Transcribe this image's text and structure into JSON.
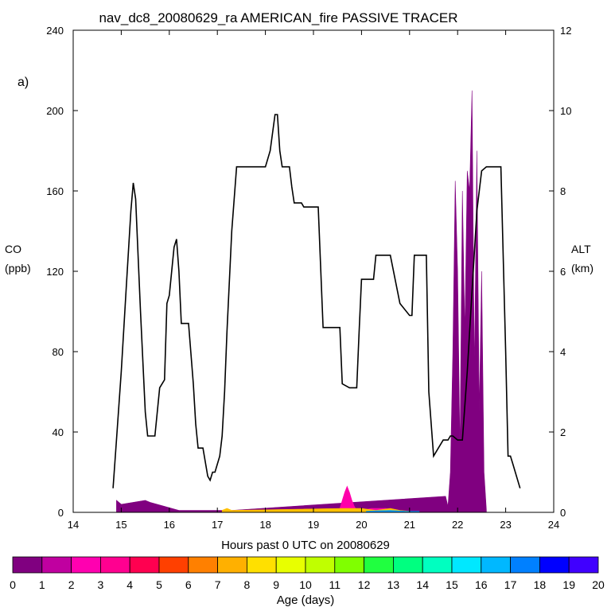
{
  "chart_data": {
    "type": "area",
    "title": "nav_dc8_20080629_ra AMERICAN_fire PASSIVE TRACER",
    "panel_label": "a)",
    "xlabel": "Hours past 0 UTC on 20080629",
    "ylabel_left": [
      "CO",
      "(ppb)"
    ],
    "ylabel_right": [
      "ALT",
      "(km)"
    ],
    "xlim": [
      14,
      24
    ],
    "ylim_left": [
      0,
      240
    ],
    "ylim_right": [
      0,
      12
    ],
    "x_ticks": [
      "14",
      "15",
      "16",
      "17",
      "18",
      "19",
      "20",
      "21",
      "22",
      "23",
      "24"
    ],
    "y_left_ticks": [
      "0",
      "40",
      "80",
      "120",
      "160",
      "200",
      "240"
    ],
    "y_right_ticks": [
      "0",
      "2",
      "4",
      "6",
      "8",
      "10",
      "12"
    ],
    "altitude_series": {
      "name": "ALT",
      "color": "#000000",
      "x": [
        14.83,
        14.9,
        15.0,
        15.1,
        15.2,
        15.25,
        15.3,
        15.4,
        15.5,
        15.55,
        15.6,
        15.7,
        15.75,
        15.8,
        15.9,
        15.95,
        16.0,
        16.05,
        16.1,
        16.15,
        16.2,
        16.25,
        16.3,
        16.4,
        16.5,
        16.55,
        16.6,
        16.7,
        16.8,
        16.85,
        16.9,
        16.95,
        17.0,
        17.05,
        17.1,
        17.15,
        17.2,
        17.3,
        17.4,
        17.5,
        17.6,
        17.65,
        17.7,
        17.8,
        17.9,
        18.0,
        18.1,
        18.2,
        18.25,
        18.3,
        18.35,
        18.4,
        18.45,
        18.5,
        18.55,
        18.6,
        18.7,
        18.75,
        18.8,
        18.85,
        18.9,
        19.0,
        19.1,
        19.2,
        19.4,
        19.5,
        19.55,
        19.6,
        19.75,
        19.9,
        19.95,
        20.0,
        20.1,
        20.2,
        20.25,
        20.3,
        20.4,
        20.5,
        20.55,
        20.6,
        20.8,
        21.0,
        21.05,
        21.1,
        21.2,
        21.3,
        21.35,
        21.4,
        21.5,
        21.6,
        21.7,
        21.75,
        21.8,
        21.85,
        21.9,
        22.0,
        22.1,
        22.2,
        22.3,
        22.4,
        22.5,
        22.6,
        22.7,
        22.8,
        22.9,
        23.0,
        23.05,
        23.1,
        23.15,
        23.2,
        23.3
      ],
      "y": [
        0.6,
        1.8,
        3.5,
        5.5,
        7.5,
        8.2,
        7.8,
        5.0,
        2.5,
        1.9,
        1.9,
        1.9,
        2.5,
        3.1,
        3.3,
        5.2,
        5.4,
        6.0,
        6.6,
        6.8,
        6.0,
        4.7,
        4.7,
        4.7,
        3.2,
        2.2,
        1.6,
        1.6,
        0.9,
        0.8,
        1.0,
        1.0,
        1.2,
        1.4,
        1.9,
        3.0,
        4.5,
        7.0,
        8.6,
        8.6,
        8.6,
        8.6,
        8.6,
        8.6,
        8.6,
        8.6,
        9.0,
        9.9,
        9.9,
        9.0,
        8.6,
        8.6,
        8.6,
        8.6,
        8.1,
        7.7,
        7.7,
        7.7,
        7.6,
        7.6,
        7.6,
        7.6,
        7.6,
        4.6,
        4.6,
        4.6,
        4.6,
        3.2,
        3.1,
        3.1,
        4.5,
        5.8,
        5.8,
        5.8,
        5.8,
        6.4,
        6.4,
        6.4,
        6.4,
        6.4,
        5.2,
        4.9,
        4.9,
        6.4,
        6.4,
        6.4,
        6.4,
        3.0,
        1.4,
        1.6,
        1.8,
        1.8,
        1.8,
        1.9,
        1.9,
        1.8,
        1.8,
        3.5,
        5.5,
        7.5,
        8.5,
        8.6,
        8.6,
        8.6,
        8.6,
        4.0,
        1.4,
        1.4,
        1.2,
        1.0,
        0.6
      ]
    },
    "co_tracer_series": [
      {
        "name": "0",
        "color": "#800080",
        "x": [
          14.9,
          15.0,
          15.5,
          15.6,
          16.2,
          17.3,
          21.75,
          21.8,
          21.85,
          21.9,
          21.95,
          22.0,
          22.05,
          22.1,
          22.15,
          22.2,
          22.25,
          22.3,
          22.35,
          22.4,
          22.45,
          22.5,
          22.55,
          22.6
        ],
        "y": [
          6,
          4,
          6,
          5,
          1,
          1,
          8,
          3,
          20,
          80,
          165,
          120,
          30,
          160,
          90,
          170,
          160,
          210,
          70,
          180,
          50,
          120,
          20,
          1
        ]
      },
      {
        "name": "3",
        "color": "#ff00aa",
        "x": [
          19.55,
          19.6,
          19.65,
          19.7,
          19.75,
          19.8,
          19.85,
          19.9,
          19.95,
          20.0,
          20.2,
          20.5,
          20.7
        ],
        "y": [
          2,
          6,
          10,
          13,
          10,
          6,
          3,
          1,
          0.5,
          1,
          2,
          2,
          1
        ]
      },
      {
        "name": "7",
        "color": "#ffc000",
        "x": [
          17.1,
          17.2,
          17.3,
          19.6,
          19.7,
          19.8,
          20.0,
          20.3,
          20.6,
          20.8,
          21.0
        ],
        "y": [
          1,
          2,
          1,
          2,
          2,
          2,
          2,
          1,
          2,
          1,
          0.5
        ]
      },
      {
        "name": "16",
        "color": "#00a0ff",
        "x": [
          20.1,
          20.3,
          20.6,
          20.9,
          21.2
        ],
        "y": [
          0.5,
          0.8,
          1,
          0.6,
          0.5
        ]
      }
    ],
    "colorbar": {
      "label": "Age (days)",
      "ticks": [
        "0",
        "1",
        "2",
        "3",
        "4",
        "5",
        "6",
        "7",
        "8",
        "9",
        "10",
        "11",
        "12",
        "13",
        "14",
        "15",
        "16",
        "17",
        "18",
        "19",
        "20"
      ],
      "colors": [
        "#800080",
        "#c000a0",
        "#ff00b0",
        "#ff0090",
        "#ff0050",
        "#ff4000",
        "#ff8000",
        "#ffb000",
        "#ffe000",
        "#e8ff00",
        "#c0ff00",
        "#80ff00",
        "#20ff40",
        "#00ff80",
        "#00ffc0",
        "#00e8ff",
        "#00b8ff",
        "#0080ff",
        "#0000ff",
        "#4000ff"
      ]
    }
  }
}
